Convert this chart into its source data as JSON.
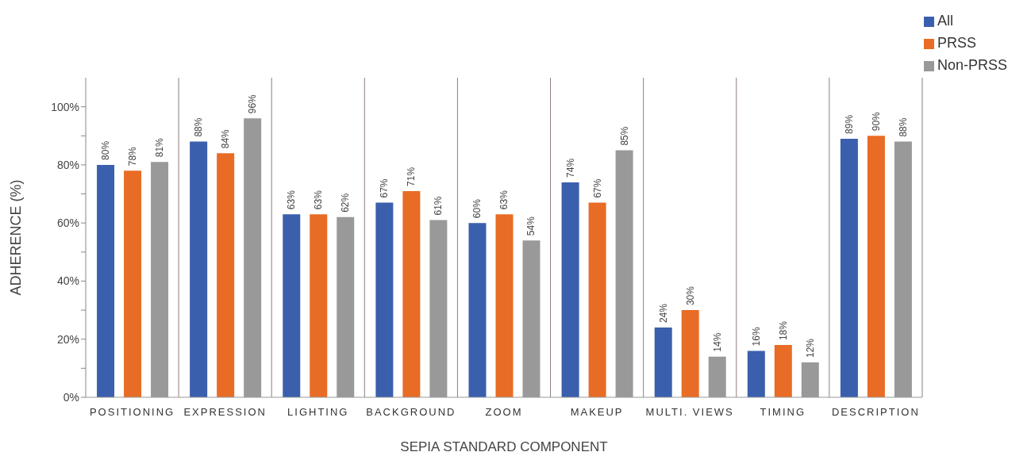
{
  "chart_data": {
    "type": "bar",
    "xlabel": "SEPIA STANDARD COMPONENT",
    "ylabel": "ADHERENCE (%)",
    "categories": [
      "POSITIONING",
      "EXPRESSION",
      "LIGHTING",
      "BACKGROUND",
      "ZOOM",
      "MAKEUP",
      "MULTI. VIEWS",
      "TIMING",
      "DESCRIPTION"
    ],
    "series": [
      {
        "name": "All",
        "color": "#3a5fad",
        "values": [
          80,
          88,
          63,
          67,
          60,
          74,
          24,
          16,
          89
        ],
        "value_labels": [
          "80%",
          "88%",
          "63%",
          "67%",
          "60%",
          "74%",
          "24%",
          "16%",
          "89%"
        ]
      },
      {
        "name": "PRSS",
        "color": "#e86c25",
        "values": [
          78,
          84,
          63,
          71,
          63,
          67,
          30,
          18,
          90
        ],
        "value_labels": [
          "78%",
          "84%",
          "63%",
          "71%",
          "63%",
          "67%",
          "30%",
          "18%",
          "90%"
        ]
      },
      {
        "name": "Non-PRSS",
        "color": "#999999",
        "values": [
          81,
          96,
          62,
          61,
          54,
          85,
          14,
          12,
          88
        ],
        "value_labels": [
          "81%",
          "96%",
          "62%",
          "61%",
          "54%",
          "85%",
          "14%",
          "12%",
          "88%"
        ]
      }
    ],
    "ylim": [
      0,
      110
    ],
    "yticks": [
      {
        "value": 0,
        "label": "0%"
      },
      {
        "value": 10,
        "label": null
      },
      {
        "value": 20,
        "label": "20%"
      },
      {
        "value": 30,
        "label": null
      },
      {
        "value": 40,
        "label": "40%"
      },
      {
        "value": 50,
        "label": null
      },
      {
        "value": 60,
        "label": "60%"
      },
      {
        "value": 70,
        "label": null
      },
      {
        "value": 80,
        "label": "80%"
      },
      {
        "value": 90,
        "label": null
      },
      {
        "value": 100,
        "label": "100%"
      }
    ],
    "grid": "x",
    "legend": "top right"
  }
}
